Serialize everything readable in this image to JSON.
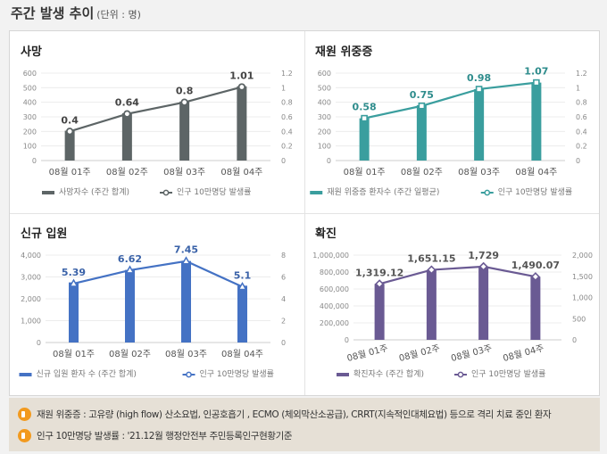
{
  "header": {
    "title": "주간 발생 추이",
    "unit": "(단위 : 명)"
  },
  "chart_data": [
    {
      "type": "bar+line",
      "title": "사망",
      "categories": [
        "08월 01주",
        "08월 02주",
        "08월 03주",
        "08월 04주"
      ],
      "series": [
        {
          "name": "사망자수 (주간 합계)",
          "type": "bar",
          "axis": "left",
          "values": [
            205,
            325,
            405,
            510
          ]
        },
        {
          "name": "인구 10만명당 발생률",
          "type": "line",
          "axis": "right",
          "marker": "circle",
          "values": [
            0.4,
            0.64,
            0.8,
            1.01
          ],
          "labels": [
            "0.4",
            "0.64",
            "0.8",
            "1.01"
          ]
        }
      ],
      "ylim": [
        0,
        600
      ],
      "yticks": [
        "0",
        "100",
        "200",
        "300",
        "400",
        "500",
        "600"
      ],
      "y2lim": [
        0,
        1.2
      ],
      "y2ticks": [
        "0",
        "0.2",
        "0.4",
        "0.6",
        "0.8",
        "1",
        "1.2"
      ],
      "color": "#5d6566",
      "label_color": "#444444",
      "rotate_x": false,
      "grid": true,
      "legend": "bottom"
    },
    {
      "type": "bar+line",
      "title": "재원 위중증",
      "categories": [
        "08월 01주",
        "08월 02주",
        "08월 03주",
        "08월 04주"
      ],
      "series": [
        {
          "name": "재원 위중증 환자수 (주간 일평균)",
          "type": "bar",
          "axis": "left",
          "values": [
            290,
            380,
            490,
            535
          ]
        },
        {
          "name": "인구 10만명당 발생률",
          "type": "line",
          "axis": "right",
          "marker": "square",
          "values": [
            0.58,
            0.75,
            0.98,
            1.07
          ],
          "labels": [
            "0.58",
            "0.75",
            "0.98",
            "1.07"
          ]
        }
      ],
      "ylim": [
        0,
        600
      ],
      "yticks": [
        "0",
        "100",
        "200",
        "300",
        "400",
        "500",
        "600"
      ],
      "y2lim": [
        0,
        1.2
      ],
      "y2ticks": [
        "0",
        "0.2",
        "0.4",
        "0.6",
        "0.8",
        "1",
        "1.2"
      ],
      "color": "#3a9e9e",
      "label_color": "#2e8c8c",
      "rotate_x": false,
      "grid": true,
      "legend": "bottom"
    },
    {
      "type": "bar+line",
      "title": "신규 입원",
      "categories": [
        "08월 01주",
        "08월 02주",
        "08월 03주",
        "08월 04주"
      ],
      "series": [
        {
          "name": "신규 입원 환자 수 (주간 합계)",
          "type": "bar",
          "axis": "left",
          "values": [
            2750,
            3320,
            3730,
            2600
          ]
        },
        {
          "name": "인구 10만명당 발생률",
          "type": "line",
          "axis": "right",
          "marker": "triangle",
          "values": [
            5.39,
            6.62,
            7.45,
            5.1
          ],
          "labels": [
            "5.39",
            "6.62",
            "7.45",
            "5.1"
          ]
        }
      ],
      "ylim": [
        0,
        4000
      ],
      "yticks": [
        "0",
        "1,000",
        "2,000",
        "3,000",
        "4,000"
      ],
      "y2lim": [
        0,
        8
      ],
      "y2ticks": [
        "0",
        "2",
        "4",
        "6",
        "8"
      ],
      "color": "#4472c4",
      "label_color": "#3a62a8",
      "rotate_x": false,
      "grid": true,
      "legend": "bottom"
    },
    {
      "type": "bar+line",
      "title": "확진",
      "categories": [
        "08월 01주",
        "08월 02주",
        "08월 03주",
        "08월 04주"
      ],
      "series": [
        {
          "name": "확진자수 (주간 합계)",
          "type": "bar",
          "axis": "left",
          "values": [
            660000,
            825000,
            865000,
            745000
          ]
        },
        {
          "name": "인구 10만명당 발생률",
          "type": "line",
          "axis": "right",
          "marker": "diamond",
          "values": [
            1319.12,
            1651.15,
            1729,
            1490.07
          ],
          "labels": [
            "1,319.12",
            "1,651.15",
            "1,729",
            "1,490.07"
          ]
        }
      ],
      "ylim": [
        0,
        1000000
      ],
      "yticks": [
        "0",
        "200,000",
        "400,000",
        "600,000",
        "800,000",
        "1,000,000"
      ],
      "y2lim": [
        0,
        2000
      ],
      "y2ticks": [
        "0",
        "500",
        "1,000",
        "1,500",
        "2,000"
      ],
      "color": "#6a5a93",
      "label_color": "#555555",
      "rotate_x": true,
      "grid": true,
      "legend": "bottom"
    }
  ],
  "notes": [
    "재원 위중증 : 고유량 (high flow) 산소요법, 인공호흡기 , ECMO (체외막산소공급), CRRT(지속적인대체요법) 등으로 격리 치료 중인 환자",
    "인구 10만명당 발생률 : '21.12월 행정안전부 주민등록인구현황기준"
  ],
  "icons": {
    "note": "speaker-icon"
  }
}
